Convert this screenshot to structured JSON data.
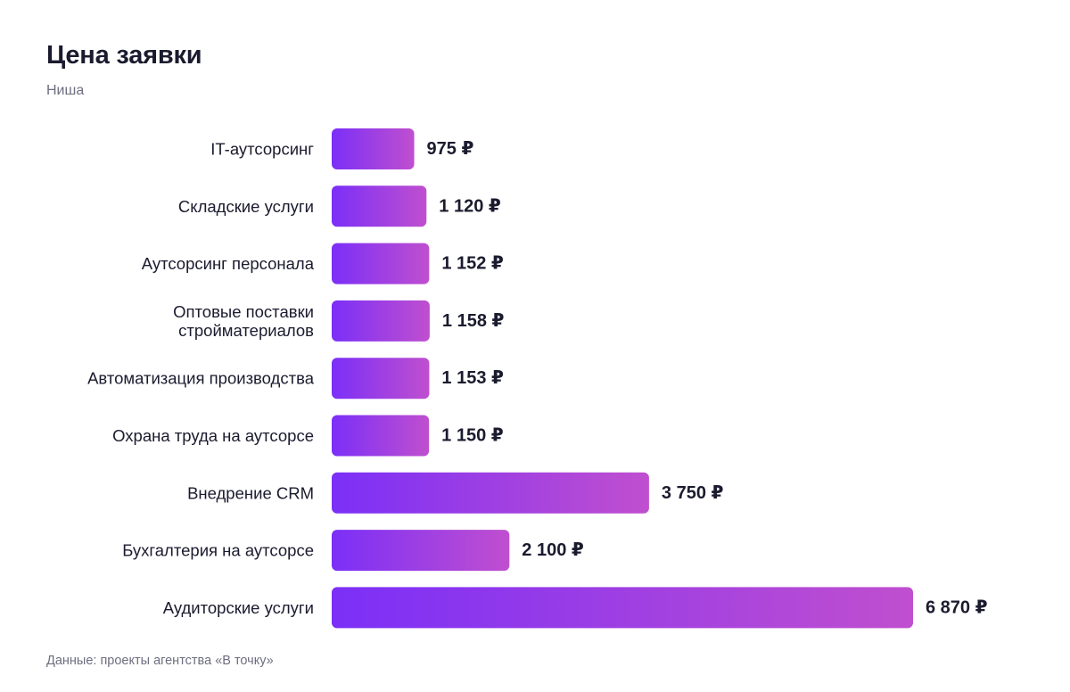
{
  "header": {
    "title": "Цена заявки",
    "subtitle": "Ниша"
  },
  "footer": {
    "source": "Данные: проекты агентства «В точку»"
  },
  "colors": {
    "bar_start": "#7b2ff7",
    "bar_end": "#c04fcf",
    "text": "#1b1b2f",
    "muted": "#6e6e80"
  },
  "chart_data": {
    "type": "bar",
    "orientation": "horizontal",
    "title": "Цена заявки",
    "subtitle": "Ниша",
    "unit": "₽",
    "categories": [
      [
        "IT-аутсорсинг"
      ],
      [
        "Складские услуги"
      ],
      [
        "Аутсорсинг персонала"
      ],
      [
        "Оптовые поставки",
        "стройматериалов"
      ],
      [
        "Автоматизация производства"
      ],
      [
        "Охрана труда на аутсорсе"
      ],
      [
        "Внедрение CRM"
      ],
      [
        "Бухгалтерия на аутсорсе"
      ],
      [
        "Аудиторские услуги"
      ]
    ],
    "values": [
      975,
      1120,
      1152,
      1158,
      1153,
      1150,
      3750,
      2100,
      6870
    ],
    "value_labels": [
      "975 ₽",
      "1 120 ₽",
      "1 152 ₽",
      "1 158 ₽",
      "1 153 ₽",
      "1 150 ₽",
      "3 750 ₽",
      "2 100 ₽",
      "6 870 ₽"
    ],
    "xlim": [
      0,
      6870
    ],
    "grid": false,
    "legend": "none"
  }
}
